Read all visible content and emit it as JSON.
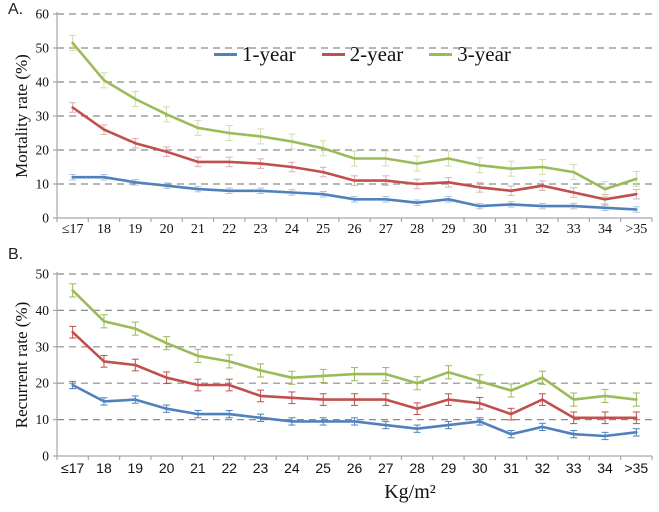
{
  "figure": {
    "panel_a_label": "A.",
    "panel_b_label": "B.",
    "background": "#FFFFFF"
  },
  "colors": {
    "gridline": "#8C8C8C",
    "axis": "#A6A6A6",
    "tick": "#A6A6A6",
    "text": "#1A1A1A"
  },
  "legend": {
    "position": "top-center-inside-panel-a",
    "items": [
      {
        "label": "1-year",
        "color": "#4F81BD"
      },
      {
        "label": "2-year",
        "color": "#C0504D"
      },
      {
        "label": "3-year",
        "color": "#9BBB59"
      }
    ]
  },
  "chart_data": [
    {
      "type": "line",
      "panel": "A",
      "ylabel": "Mortality rate (%)",
      "xlabel": "",
      "ylim": [
        0,
        60
      ],
      "yticks": [
        0,
        10,
        20,
        30,
        40,
        50,
        60
      ],
      "grid": "horizontal-dashed",
      "error_bars": true,
      "categories": [
        "≤17",
        "18",
        "19",
        "20",
        "21",
        "22",
        "23",
        "24",
        "25",
        "26",
        "27",
        "28",
        "29",
        "30",
        "31",
        "32",
        "33",
        "34",
        ">35"
      ],
      "series": [
        {
          "name": "1-year",
          "color": "#4F81BD",
          "err_color": "#A9C4E5",
          "err": 0.8,
          "values": [
            12,
            12,
            10.5,
            9.5,
            8.5,
            8,
            8,
            7.5,
            7,
            5.5,
            5.5,
            4.5,
            5.5,
            3.5,
            4,
            3.5,
            3.5,
            3,
            2.5
          ]
        },
        {
          "name": "2-year",
          "color": "#C0504D",
          "err_color": "#E3ACAA",
          "err": 1.4,
          "values": [
            32.5,
            26,
            22,
            19.5,
            16.5,
            16.5,
            16,
            15,
            13.5,
            11,
            11,
            10,
            10.5,
            9,
            8,
            9.5,
            7.5,
            5.5,
            7
          ]
        },
        {
          "name": "3-year",
          "color": "#9BBB59",
          "err_color": "#CFDFA7",
          "err": 2.2,
          "values": [
            51.5,
            40.5,
            35,
            30.5,
            26.5,
            25,
            24,
            22.5,
            20.5,
            17.5,
            17.5,
            16,
            17.5,
            15.5,
            14.5,
            15,
            13.5,
            8.5,
            11.5
          ]
        }
      ]
    },
    {
      "type": "line",
      "panel": "B",
      "ylabel": "Recurrent rate (%)",
      "xlabel": "Kg/m²",
      "ylim": [
        0,
        50
      ],
      "yticks": [
        0,
        10,
        20,
        30,
        40,
        50
      ],
      "grid": "horizontal-dashed",
      "error_bars": true,
      "categories": [
        "≤17",
        "18",
        "19",
        "20",
        "21",
        "22",
        "23",
        "24",
        "25",
        "26",
        "27",
        "28",
        "29",
        "30",
        "31",
        "32",
        "33",
        "34",
        ">35"
      ],
      "series": [
        {
          "name": "1-year",
          "color": "#4F81BD",
          "err_color": "#4F81BD",
          "err": 1.0,
          "values": [
            19.5,
            15,
            15.5,
            13,
            11.5,
            11.5,
            10.5,
            9.5,
            9.5,
            9.5,
            8.5,
            7.5,
            8.5,
            9.5,
            6,
            8,
            6,
            5.5,
            6.5
          ]
        },
        {
          "name": "2-year",
          "color": "#C0504D",
          "err_color": "#C0504D",
          "err": 1.6,
          "values": [
            34,
            26,
            25,
            21.5,
            19.5,
            19.5,
            16.5,
            16,
            15.5,
            15.5,
            15.5,
            13,
            15.5,
            14.5,
            11.5,
            15.5,
            10.5,
            10.5,
            10.5
          ]
        },
        {
          "name": "3-year",
          "color": "#9BBB59",
          "err_color": "#9BBB59",
          "err": 1.8,
          "values": [
            45.5,
            37,
            35,
            31,
            27.5,
            26,
            23.5,
            21.5,
            22,
            22.5,
            22.5,
            20,
            23,
            20.5,
            18,
            21.5,
            15.5,
            16.5,
            15.5
          ]
        }
      ]
    }
  ]
}
